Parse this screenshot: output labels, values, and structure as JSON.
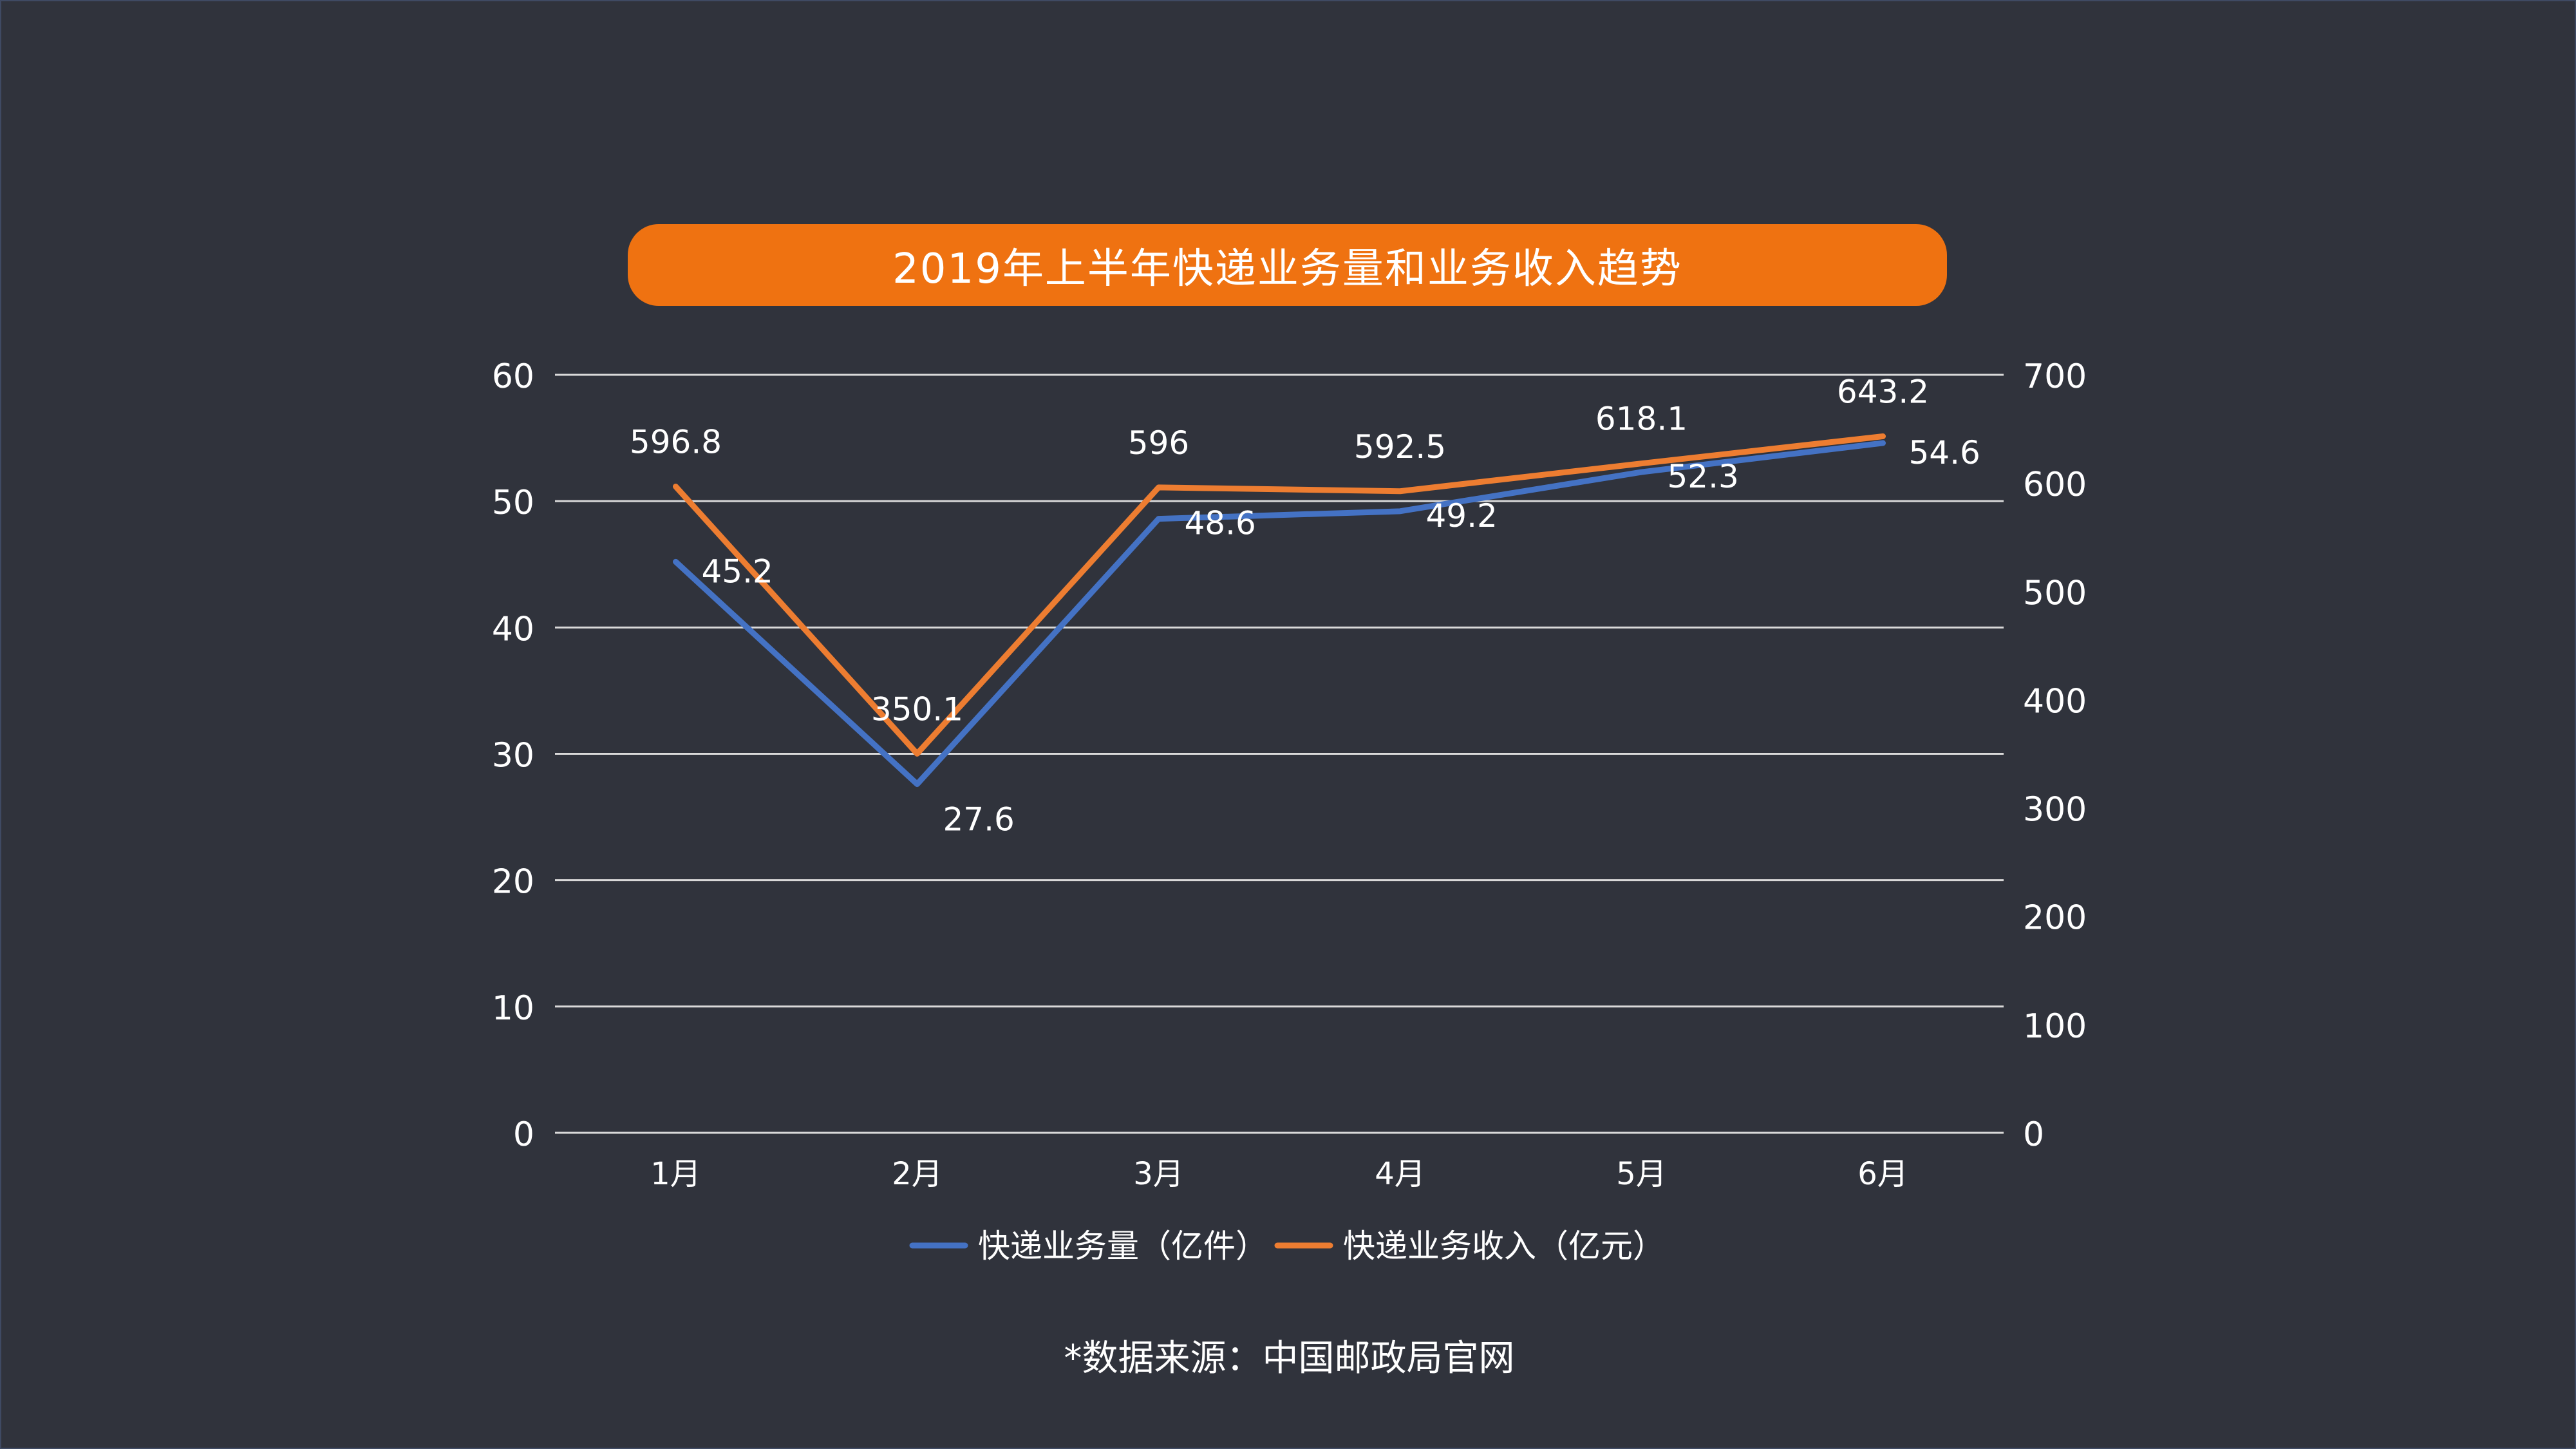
{
  "source_note": "*数据来源：中国邮政局官网",
  "colors": {
    "background": "#30333c",
    "title_bg": "#ef7211",
    "series_volume": "#4472c4",
    "series_revenue": "#ed7d31",
    "grid": "#d9d9d9",
    "text": "#ffffff"
  },
  "chart_data": {
    "type": "line",
    "title": "2019年上半年快递业务量和业务收入趋势",
    "categories": [
      "1月",
      "2月",
      "3月",
      "4月",
      "5月",
      "6月"
    ],
    "series": [
      {
        "name": "快递业务量（亿件）",
        "axis": "left",
        "values": [
          45.2,
          27.6,
          48.6,
          49.2,
          52.3,
          54.6
        ],
        "labels": [
          "45.2",
          "27.6",
          "48.6",
          "49.2",
          "52.3",
          "54.6"
        ],
        "color": "#4472c4"
      },
      {
        "name": "快递业务收入（亿元）",
        "axis": "right",
        "values": [
          596.8,
          350.1,
          596,
          592.5,
          618.1,
          643.2
        ],
        "labels": [
          "596.8",
          "350.1",
          "596",
          "592.5",
          "618.1",
          "643.2"
        ],
        "color": "#ed7d31"
      }
    ],
    "y_left": {
      "range": [
        0,
        60
      ],
      "ticks": [
        "0",
        "10",
        "20",
        "30",
        "40",
        "50",
        "60"
      ]
    },
    "y_right": {
      "range": [
        0,
        700
      ],
      "ticks": [
        "0",
        "100",
        "200",
        "300",
        "400",
        "500",
        "600",
        "700"
      ]
    },
    "grid": true,
    "legend": "bottom"
  }
}
